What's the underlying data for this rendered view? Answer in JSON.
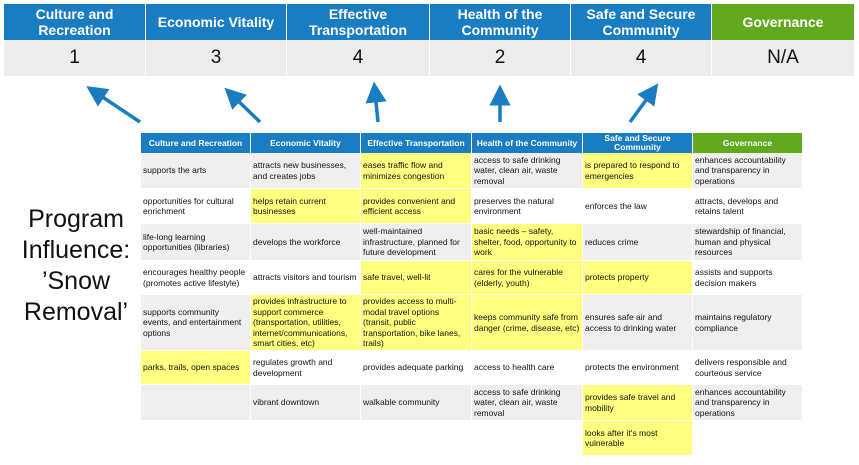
{
  "summary": {
    "headers": [
      "Culture and Recreation",
      "Economic Vitality",
      "Effective Transportation",
      "Health of the Community",
      "Safe and Secure Community",
      "Governance"
    ],
    "scores": [
      "1",
      "3",
      "4",
      "2",
      "4",
      "N/A"
    ]
  },
  "program_label": "Program Influence: ’Snow Removal’",
  "colors": {
    "blue": "#1a7cc1",
    "green": "#62a920",
    "highlight": "#ffff80",
    "row_gray": "#efefef"
  },
  "table": {
    "headers": [
      "Culture and Recreation",
      "Economic Vitality",
      "Effective Transportation",
      "Health of the Community",
      "Safe and Secure Community",
      "Governance"
    ],
    "rows": [
      [
        {
          "t": "supports the arts"
        },
        {
          "t": "attracts new businesses, and creates jobs"
        },
        {
          "t": "eases traffic flow and minimizes congestion",
          "h": true
        },
        {
          "t": "access to safe drinking water, clean air, waste removal"
        },
        {
          "t": "is prepared to respond to emergencies",
          "h": true
        },
        {
          "t": "enhances accountability and transparency in operations"
        }
      ],
      [
        {
          "t": "opportunities for cultural enrichment"
        },
        {
          "t": "helps retain current businesses",
          "h": true
        },
        {
          "t": "provides convenient and efficient access",
          "h": true
        },
        {
          "t": "preserves the natural environment"
        },
        {
          "t": "enforces the law"
        },
        {
          "t": "attracts, develops and retains talent"
        }
      ],
      [
        {
          "t": "life-long learning opportunities (libraries)"
        },
        {
          "t": "develops the workforce"
        },
        {
          "t": "well-maintained infrastructure, planned for future development"
        },
        {
          "t": "basic needs – safety, shelter, food, opportunity to work",
          "h": true
        },
        {
          "t": "reduces crime"
        },
        {
          "t": "stewardship of financial, human and physical resources"
        }
      ],
      [
        {
          "t": "encourages healthy people (promotes active lifestyle)"
        },
        {
          "t": "attracts visitors and tourism"
        },
        {
          "t": "safe travel, well-lit",
          "h": true
        },
        {
          "t": "cares for the vulnerable (elderly, youth)",
          "h": true
        },
        {
          "t": "protects property",
          "h": true
        },
        {
          "t": "assists and supports decision makers"
        }
      ],
      [
        {
          "t": "supports community events, and entertainment options"
        },
        {
          "t": "provides infrastructure to support commerce (transportation, utilities, internet/communications, smart cities, etc)",
          "h": true
        },
        {
          "t": "provides access to multi-modal travel options (transit, public transportation, bike lanes, trails)",
          "h": true
        },
        {
          "t": "keeps community safe from danger (crime, disease, etc)",
          "h": true
        },
        {
          "t": "ensures safe air and access to drinking water"
        },
        {
          "t": "maintains regulatory compliance"
        }
      ],
      [
        {
          "t": "parks, trails, open spaces",
          "h": true
        },
        {
          "t": "regulates growth and development"
        },
        {
          "t": "provides adequate parking"
        },
        {
          "t": "access to health care"
        },
        {
          "t": "protects the environment"
        },
        {
          "t": "delivers responsible and courteous service"
        }
      ],
      [
        {
          "t": ""
        },
        {
          "t": "vibrant downtown"
        },
        {
          "t": "walkable community"
        },
        {
          "t": "access to safe drinking water, clean air, waste removal"
        },
        {
          "t": "provides safe travel and mobility",
          "h": true
        },
        {
          "t": "enhances accountability and transparency in operations"
        }
      ],
      [
        {
          "t": ""
        },
        {
          "t": ""
        },
        {
          "t": ""
        },
        {
          "t": ""
        },
        {
          "t": "looks after it's most vulnerable",
          "h": true
        },
        {
          "t": ""
        }
      ]
    ]
  }
}
